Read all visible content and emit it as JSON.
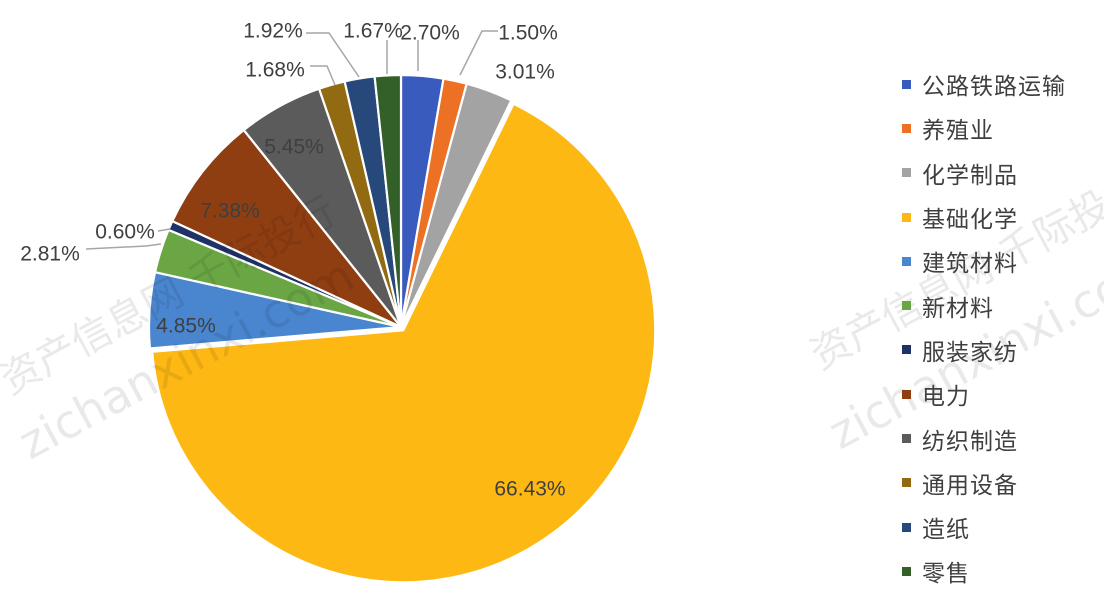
{
  "chart_data": {
    "type": "pie",
    "title": "",
    "legend_position": "right",
    "categories": [
      "公路铁路运输",
      "养殖业",
      "化学制品",
      "基础化学",
      "建筑材料",
      "新材料",
      "服装家纺",
      "电力",
      "纺织制造",
      "通用设备",
      "造纸",
      "零售"
    ],
    "values": [
      2.7,
      1.5,
      3.01,
      66.43,
      4.85,
      2.81,
      0.6,
      7.38,
      5.45,
      1.68,
      1.92,
      1.67
    ],
    "data_labels": [
      "2.70%",
      "1.50%",
      "3.01%",
      "66.43%",
      "4.85%",
      "2.81%",
      "0.60%",
      "7.38%",
      "5.45%",
      "1.68%",
      "1.92%",
      "1.67%"
    ],
    "colors": [
      "#3A5BBE",
      "#ED7125",
      "#A3A3A3",
      "#FDB813",
      "#4A86CF",
      "#6BA644",
      "#1F3267",
      "#8F3E12",
      "#5B5B5B",
      "#926A11",
      "#27487B",
      "#335F28"
    ],
    "label_color": "#3f3f3f",
    "leader_color": "#a6a6a6"
  },
  "watermark": {
    "text": [
      "资产信息网 千际投行",
      "zichanxinxi.com"
    ]
  }
}
